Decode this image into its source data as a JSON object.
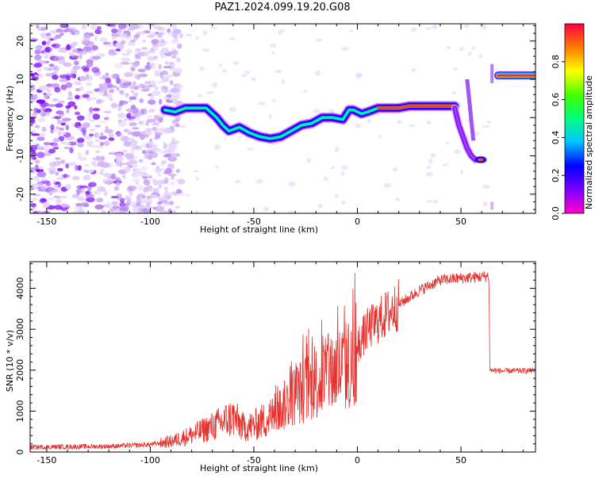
{
  "title": "PAZ1.2024.099.19.20.G08",
  "colors": {
    "snr_line": "#e8302c",
    "ridge_outer": "#7f00ff",
    "noise": "#8a2cf0"
  },
  "chart_data": [
    {
      "type": "heatmap",
      "title": "PAZ1.2024.099.19.20.G08",
      "xlabel": "Height of straight line (km)",
      "ylabel": "Frequency (Hz)",
      "xlim": [
        -158,
        86
      ],
      "ylim": [
        -25,
        24.5
      ],
      "xticks": [
        -150,
        -100,
        -50,
        0,
        50
      ],
      "yticks": [
        -20,
        -10,
        0,
        10,
        20
      ],
      "colorbar": {
        "label": "Normalized spectral amplitude",
        "range": [
          0,
          1
        ],
        "ticks": [
          "0.0",
          "0.2",
          "0.4",
          "0.6",
          "0.8"
        ],
        "colormap": "gist_rainbow_r"
      },
      "ridge": {
        "x": [
          -93,
          -88,
          -83,
          -78,
          -73,
          -68,
          -65,
          -62,
          -57,
          -52,
          -47,
          -42,
          -37,
          -32,
          -27,
          -22,
          -17,
          -12,
          -7,
          -4,
          -2,
          2,
          5,
          10,
          15,
          20,
          25,
          30,
          35,
          40,
          45,
          47
        ],
        "y": [
          2,
          1.5,
          2.5,
          2.5,
          2.5,
          0,
          -2,
          -3.5,
          -2.5,
          -4,
          -5,
          -5.5,
          -5,
          -3.5,
          -2,
          -1.5,
          0,
          0,
          -0.5,
          2,
          2,
          1,
          1.5,
          2.5,
          2.5,
          2.5,
          3,
          3,
          3,
          3,
          3,
          3
        ]
      },
      "descent": {
        "x": [
          47,
          49,
          51,
          53,
          55,
          57,
          59,
          61
        ],
        "y": [
          2.5,
          -2,
          -5,
          -8,
          -10,
          -11,
          -11,
          -11
        ]
      },
      "top_band": {
        "x": [
          68,
          86
        ],
        "y": 11
      },
      "noise_until_x": -95
    },
    {
      "type": "line",
      "xlabel": "Height of straight line (km)",
      "ylabel": "SNR (10 * v/v)",
      "xlim": [
        -158,
        86
      ],
      "ylim": [
        0,
        4650
      ],
      "xticks": [
        -150,
        -100,
        -50,
        0,
        50
      ],
      "yticks": [
        0,
        1000,
        2000,
        3000,
        4000
      ],
      "envelope": {
        "x": [
          -158,
          -120,
          -100,
          -90,
          -80,
          -70,
          -60,
          -55,
          -50,
          -40,
          -30,
          -20,
          -10,
          -5,
          0,
          5,
          10,
          20,
          30,
          40,
          50,
          60,
          63.5,
          64,
          70,
          86
        ],
        "y": [
          120,
          140,
          180,
          260,
          420,
          620,
          850,
          600,
          650,
          900,
          1400,
          1700,
          2000,
          2100,
          2600,
          3000,
          3200,
          3600,
          3950,
          4200,
          4250,
          4280,
          4300,
          2000,
          1980,
          1990
        ]
      }
    }
  ]
}
